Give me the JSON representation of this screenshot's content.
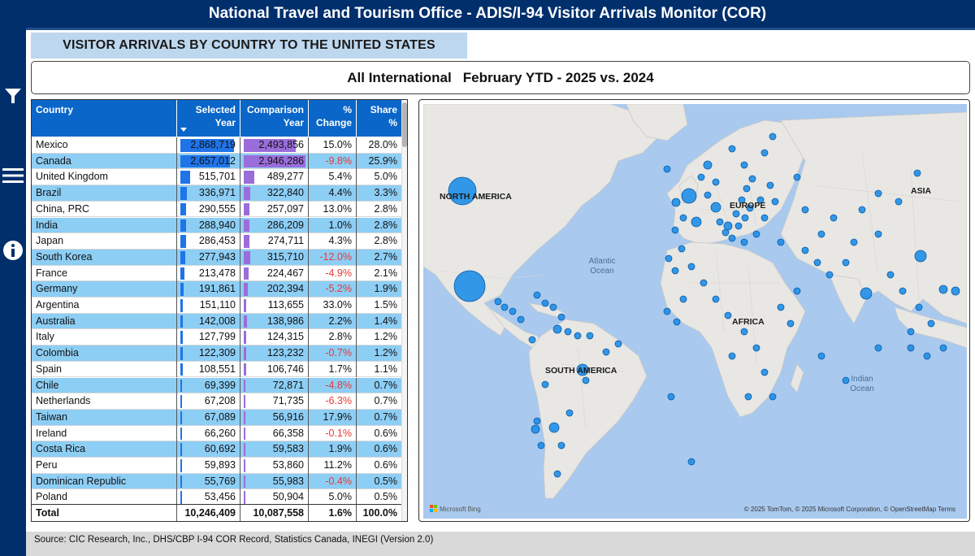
{
  "header": {
    "title": "National Travel and Tourism Office  - ADIS/I-94 Visitor Arrivals Monitor (COR)"
  },
  "sidebar": {
    "icons": [
      "filter-icon",
      "menu-icon",
      "info-icon"
    ]
  },
  "section_title": "VISITOR ARRIVALS BY COUNTRY TO THE UNITED STATES",
  "subtitle": {
    "region": "All International",
    "period": "February YTD - 2025 vs. 2024"
  },
  "table": {
    "headers": {
      "country": "Country",
      "selected_1": "Selected",
      "selected_2": "Year",
      "comparison_1": "Comparison",
      "comparison_2": "Year",
      "change_1": "%",
      "change_2": "Change",
      "share_1": "Share",
      "share_2": "%"
    },
    "rows": [
      {
        "country": "Mexico",
        "selected": "2,868,719",
        "comparison": "2,493,856",
        "change": "15.0%",
        "share": "28.0%",
        "negative": false,
        "sel_value": 2868719,
        "comp_value": 2493856
      },
      {
        "country": "Canada",
        "selected": "2,657,012",
        "comparison": "2,946,286",
        "change": "-9.8%",
        "share": "25.9%",
        "negative": true,
        "sel_value": 2657012,
        "comp_value": 2946286
      },
      {
        "country": "United Kingdom",
        "selected": "515,701",
        "comparison": "489,277",
        "change": "5.4%",
        "share": "5.0%",
        "negative": false,
        "sel_value": 515701,
        "comp_value": 489277
      },
      {
        "country": "Brazil",
        "selected": "336,971",
        "comparison": "322,840",
        "change": "4.4%",
        "share": "3.3%",
        "negative": false,
        "sel_value": 336971,
        "comp_value": 322840
      },
      {
        "country": "China, PRC",
        "selected": "290,555",
        "comparison": "257,097",
        "change": "13.0%",
        "share": "2.8%",
        "negative": false,
        "sel_value": 290555,
        "comp_value": 257097
      },
      {
        "country": "India",
        "selected": "288,940",
        "comparison": "286,209",
        "change": "1.0%",
        "share": "2.8%",
        "negative": false,
        "sel_value": 288940,
        "comp_value": 286209
      },
      {
        "country": "Japan",
        "selected": "286,453",
        "comparison": "274,711",
        "change": "4.3%",
        "share": "2.8%",
        "negative": false,
        "sel_value": 286453,
        "comp_value": 274711
      },
      {
        "country": "South Korea",
        "selected": "277,943",
        "comparison": "315,710",
        "change": "-12.0%",
        "share": "2.7%",
        "negative": true,
        "sel_value": 277943,
        "comp_value": 315710
      },
      {
        "country": "France",
        "selected": "213,478",
        "comparison": "224,467",
        "change": "-4.9%",
        "share": "2.1%",
        "negative": true,
        "sel_value": 213478,
        "comp_value": 224467
      },
      {
        "country": "Germany",
        "selected": "191,861",
        "comparison": "202,394",
        "change": "-5.2%",
        "share": "1.9%",
        "negative": true,
        "sel_value": 191861,
        "comp_value": 202394
      },
      {
        "country": "Argentina",
        "selected": "151,110",
        "comparison": "113,655",
        "change": "33.0%",
        "share": "1.5%",
        "negative": false,
        "sel_value": 151110,
        "comp_value": 113655
      },
      {
        "country": "Australia",
        "selected": "142,008",
        "comparison": "138,986",
        "change": "2.2%",
        "share": "1.4%",
        "negative": false,
        "sel_value": 142008,
        "comp_value": 138986
      },
      {
        "country": "Italy",
        "selected": "127,799",
        "comparison": "124,315",
        "change": "2.8%",
        "share": "1.2%",
        "negative": false,
        "sel_value": 127799,
        "comp_value": 124315
      },
      {
        "country": "Colombia",
        "selected": "122,309",
        "comparison": "123,232",
        "change": "-0.7%",
        "share": "1.2%",
        "negative": true,
        "sel_value": 122309,
        "comp_value": 123232
      },
      {
        "country": "Spain",
        "selected": "108,551",
        "comparison": "106,746",
        "change": "1.7%",
        "share": "1.1%",
        "negative": false,
        "sel_value": 108551,
        "comp_value": 106746
      },
      {
        "country": "Chile",
        "selected": "69,399",
        "comparison": "72,871",
        "change": "-4.8%",
        "share": "0.7%",
        "negative": true,
        "sel_value": 69399,
        "comp_value": 72871
      },
      {
        "country": "Netherlands",
        "selected": "67,208",
        "comparison": "71,735",
        "change": "-6.3%",
        "share": "0.7%",
        "negative": true,
        "sel_value": 67208,
        "comp_value": 71735
      },
      {
        "country": "Taiwan",
        "selected": "67,089",
        "comparison": "56,916",
        "change": "17.9%",
        "share": "0.7%",
        "negative": false,
        "sel_value": 67089,
        "comp_value": 56916
      },
      {
        "country": "Ireland",
        "selected": "66,260",
        "comparison": "66,358",
        "change": "-0.1%",
        "share": "0.6%",
        "negative": true,
        "sel_value": 66260,
        "comp_value": 66358
      },
      {
        "country": "Costa Rica",
        "selected": "60,692",
        "comparison": "59,583",
        "change": "1.9%",
        "share": "0.6%",
        "negative": false,
        "sel_value": 60692,
        "comp_value": 59583
      },
      {
        "country": "Peru",
        "selected": "59,893",
        "comparison": "53,860",
        "change": "11.2%",
        "share": "0.6%",
        "negative": false,
        "sel_value": 59893,
        "comp_value": 53860
      },
      {
        "country": "Dominican Republic",
        "selected": "55,769",
        "comparison": "55,983",
        "change": "-0.4%",
        "share": "0.5%",
        "negative": true,
        "sel_value": 55769,
        "comp_value": 55983
      },
      {
        "country": "Poland",
        "selected": "53,456",
        "comparison": "50,904",
        "change": "5.0%",
        "share": "0.5%",
        "negative": false,
        "sel_value": 53456,
        "comp_value": 50904
      }
    ],
    "total": {
      "label": "Total",
      "selected": "10,246,409",
      "comparison": "10,087,558",
      "change": "1.6%",
      "share": "100.0%"
    }
  },
  "map": {
    "labels": {
      "north_america": "NORTH AMERICA",
      "south_america": "SOUTH AMERICA",
      "europe": "EUROPE",
      "africa": "AFRICA",
      "asia": "ASIA",
      "atlantic_1": "Atlantic",
      "atlantic_2": "Ocean",
      "indian_1": "Indian",
      "indian_2": "Ocean"
    },
    "attribution": "© 2025 TomTom, © 2025 Microsoft Corporation, © OpenStreetMap  Terms",
    "logo": "Microsoft Bing",
    "colors": {
      "ocean": "#a9c9ee",
      "land": "#e8e7e3",
      "bubble": "#1e8ee6",
      "bubble_stroke": "#0d5aa7"
    }
  },
  "footer": {
    "source": "Source: CIC Research, Inc., DHS/CBP I-94 COR Record, Statistics Canada,  INEGI (Version 2.0)"
  }
}
